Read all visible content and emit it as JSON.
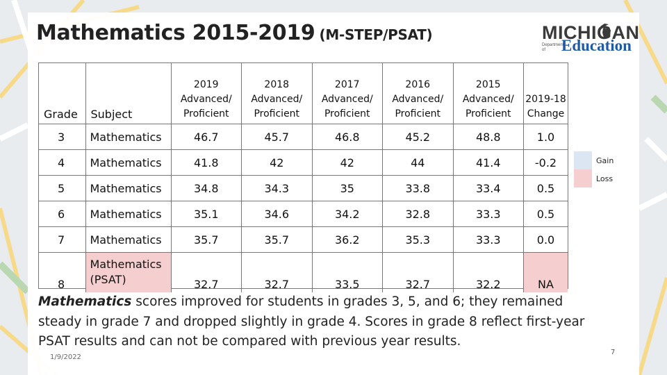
{
  "title": {
    "main": "Mathematics 2015-2019",
    "sub": "(M-STEP/PSAT)"
  },
  "logo": {
    "word1": "MICHIGAN",
    "dept": "Department of",
    "word2": "Education"
  },
  "table": {
    "headers": {
      "grade": "Grade",
      "subject": "Subject",
      "y2019": [
        "2019",
        "Advanced/",
        "Proficient"
      ],
      "y2018": [
        "2018",
        "Advanced/",
        "Proficient"
      ],
      "y2017": [
        "2017",
        "Advanced/",
        "Proficient"
      ],
      "y2016": [
        "2016",
        "Advanced/",
        "Proficient"
      ],
      "y2015": [
        "2015",
        "Advanced/",
        "Proficient"
      ],
      "change": [
        "2019-18",
        "Change"
      ]
    },
    "rows": [
      {
        "grade": "3",
        "subject": "Mathematics",
        "y2019": "46.7",
        "y2018": "45.7",
        "y2017": "46.8",
        "y2016": "45.2",
        "y2015": "48.8",
        "change": "1.0"
      },
      {
        "grade": "4",
        "subject": "Mathematics",
        "y2019": "41.8",
        "y2018": "42",
        "y2017": "42",
        "y2016": "44",
        "y2015": "41.4",
        "change": "-0.2"
      },
      {
        "grade": "5",
        "subject": "Mathematics",
        "y2019": "34.8",
        "y2018": "34.3",
        "y2017": "35",
        "y2016": "33.8",
        "y2015": "33.4",
        "change": "0.5"
      },
      {
        "grade": "6",
        "subject": "Mathematics",
        "y2019": "35.1",
        "y2018": "34.6",
        "y2017": "34.2",
        "y2016": "32.8",
        "y2015": "33.3",
        "change": "0.5"
      },
      {
        "grade": "7",
        "subject": "Mathematics",
        "y2019": "35.7",
        "y2018": "35.7",
        "y2017": "36.2",
        "y2016": "35.3",
        "y2015": "33.3",
        "change": "0.0"
      },
      {
        "grade": "8",
        "subject_line1": "Mathematics",
        "subject_line2": "(PSAT)",
        "y2019": "32.7",
        "y2018": "32.7",
        "y2017": "33.5",
        "y2016": "32.7",
        "y2015": "32.2",
        "change": "NA"
      }
    ]
  },
  "legend": {
    "gain": "Gain",
    "loss": "Loss",
    "gain_color": "#dce6f2",
    "loss_color": "#f5cfcf"
  },
  "caption": {
    "lead": "Mathematics",
    "rest": " scores improved for students in grades 3, 5, and 6; they remained steady in grade 7 and dropped slightly in grade 4. Scores in grade 8 reflect first-year PSAT results and can not be compared with previous year results."
  },
  "footer": {
    "date": "1/9/2022",
    "page": "7"
  }
}
